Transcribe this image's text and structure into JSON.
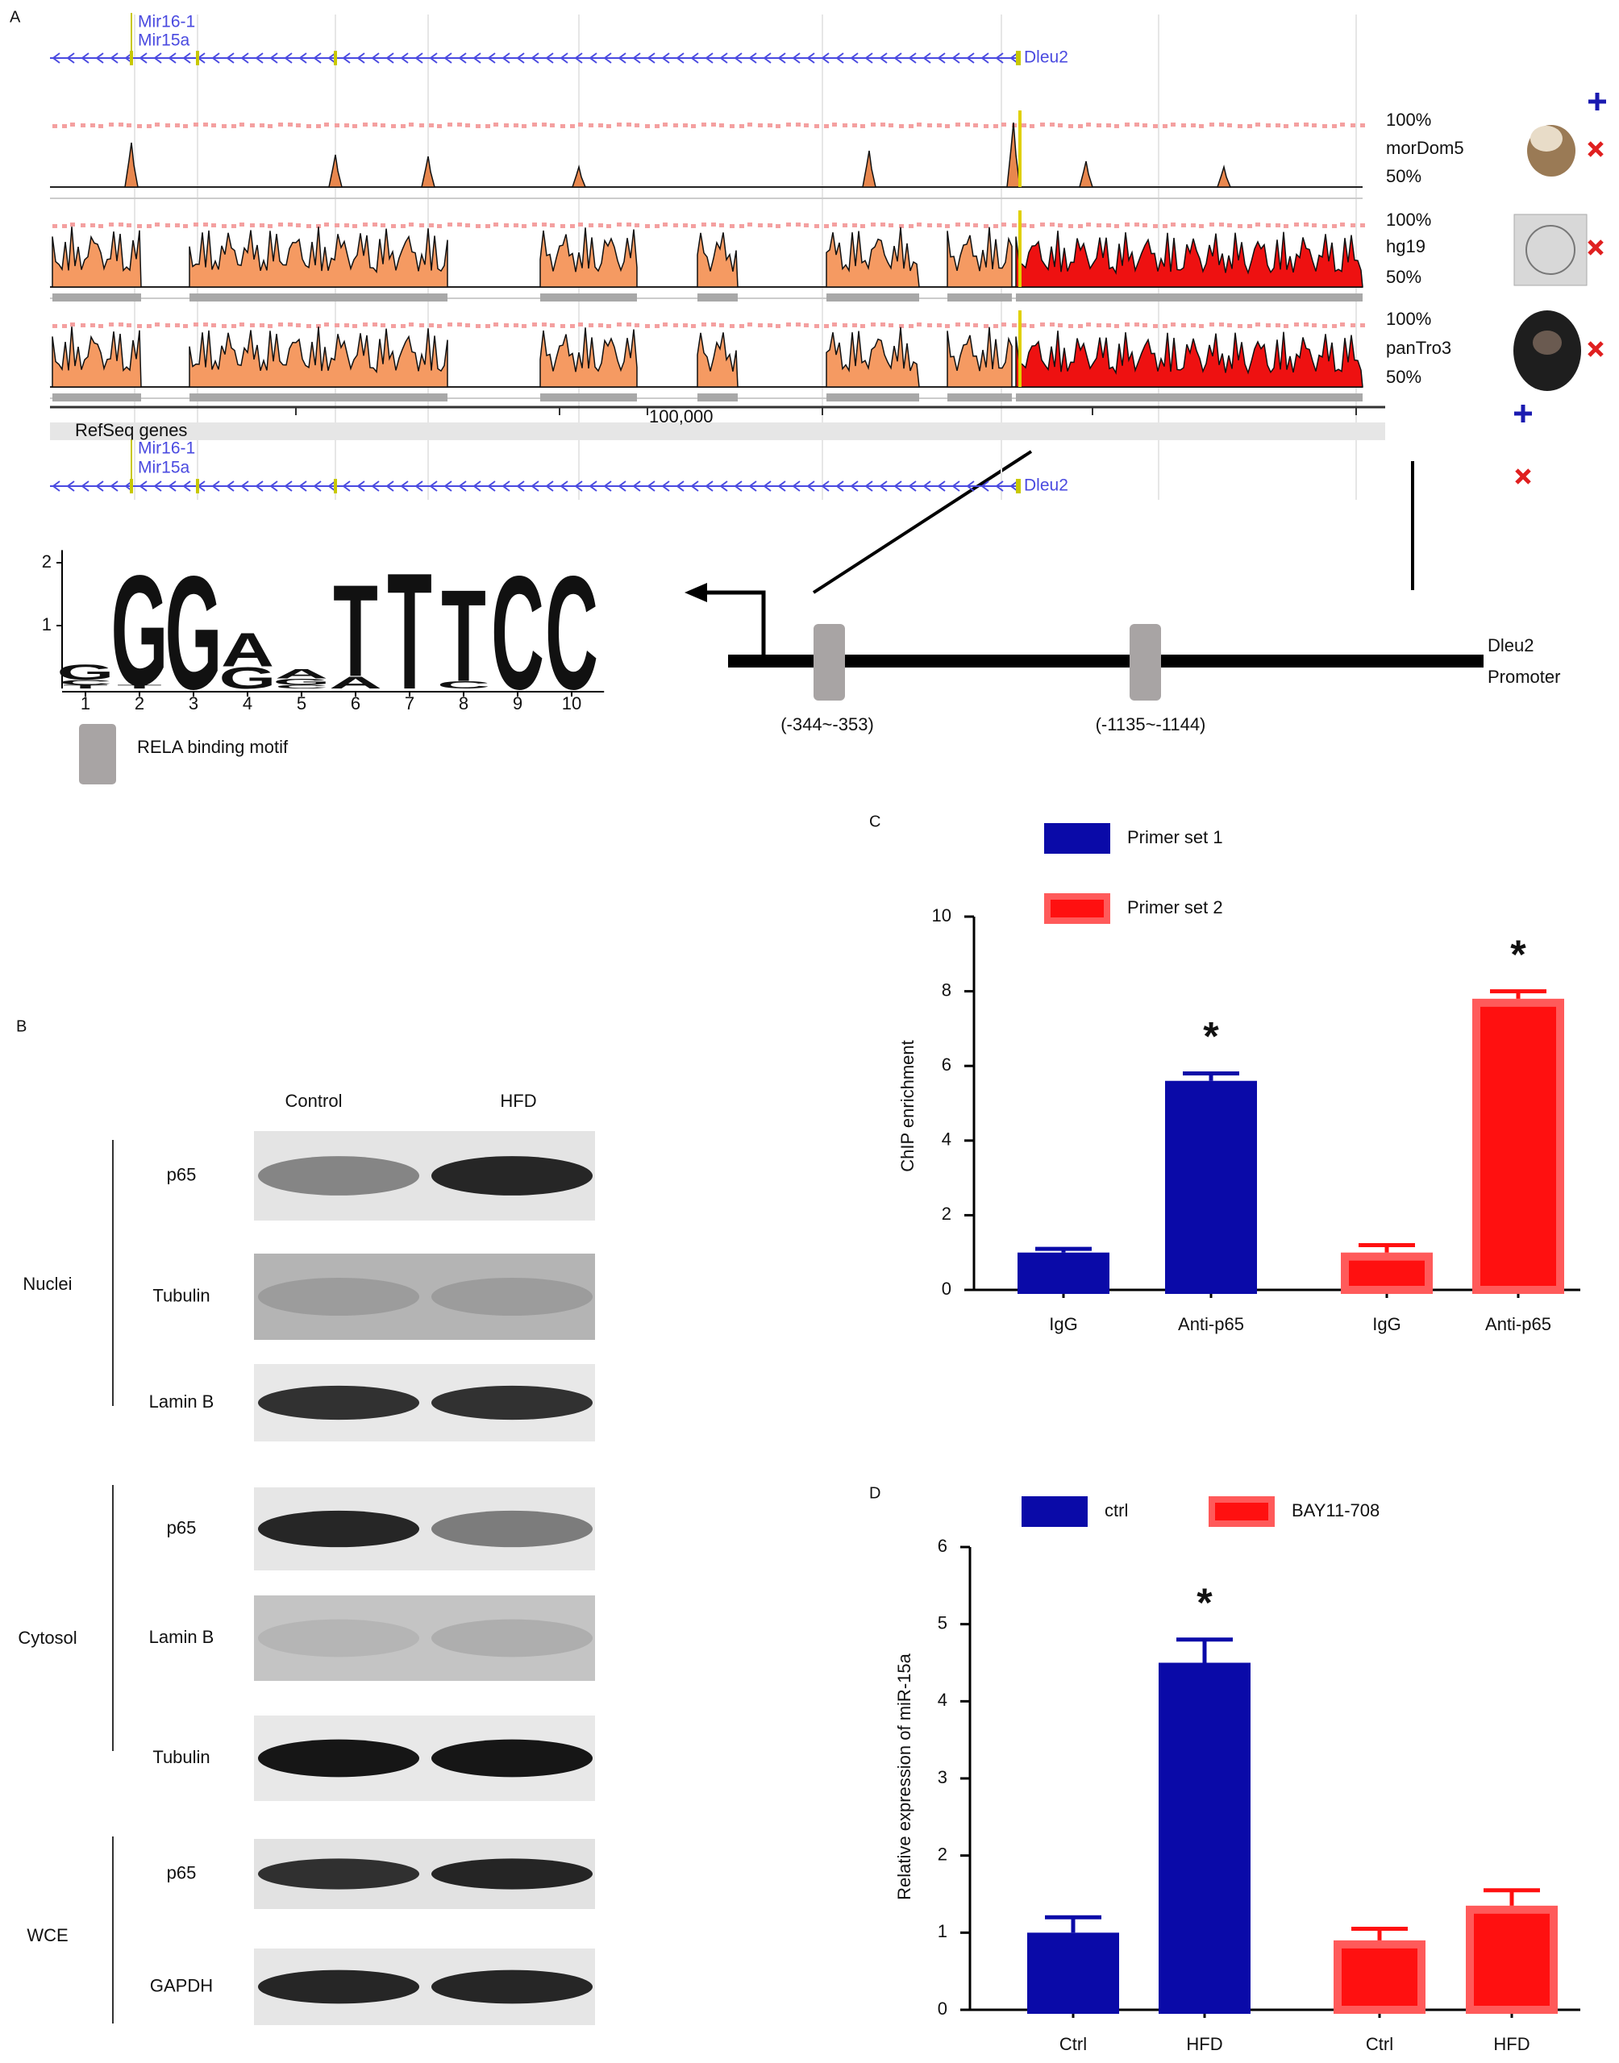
{
  "panel_labels": [
    "A",
    "B",
    "C",
    "D"
  ],
  "genome": {
    "genes_top": [
      "Mir16-1",
      "Mir15a",
      "Dleu2"
    ],
    "tracks": [
      {
        "name": "morDom5",
        "top": "100%",
        "bottom": "50%"
      },
      {
        "name": "hg19",
        "top": "100%",
        "bottom": "50%"
      },
      {
        "name": "panTro3",
        "top": "100%",
        "bottom": "50%"
      }
    ],
    "ruler": "100,000",
    "refseq": "RefSeq genes",
    "genes_bottom": [
      "Mir16-1",
      "Mir15a",
      "Dleu2"
    ]
  },
  "logo": {
    "yticks": [
      1,
      2
    ],
    "ylim": [
      0,
      2.2
    ],
    "positions": [
      1,
      2,
      3,
      4,
      5,
      6,
      7,
      8,
      9,
      10
    ],
    "colors": {
      "A": "#20b020",
      "C": "#0000d0",
      "G": "#c4c400",
      "T": "#ee0000"
    },
    "stacks": [
      [
        {
          "letter": "T",
          "height": 0.06
        },
        {
          "letter": "C",
          "height": 0.08
        },
        {
          "letter": "G",
          "height": 0.25
        }
      ],
      [
        {
          "letter": "T",
          "height": 0.06
        },
        {
          "letter": "G",
          "height": 1.8
        }
      ],
      [
        {
          "letter": "G",
          "height": 1.85
        }
      ],
      [
        {
          "letter": "G",
          "height": 0.35
        },
        {
          "letter": "A",
          "height": 0.55
        }
      ],
      [
        {
          "letter": "C",
          "height": 0.06
        },
        {
          "letter": "G",
          "height": 0.1
        },
        {
          "letter": "A",
          "height": 0.15
        }
      ],
      [
        {
          "letter": "A",
          "height": 0.2
        },
        {
          "letter": "T",
          "height": 1.5
        }
      ],
      [
        {
          "letter": "T",
          "height": 1.9
        }
      ],
      [
        {
          "letter": "C",
          "height": 0.12
        },
        {
          "letter": "T",
          "height": 1.5
        }
      ],
      [
        {
          "letter": "C",
          "height": 1.85
        }
      ],
      [
        {
          "letter": "C",
          "height": 1.85
        }
      ]
    ]
  },
  "promoter": {
    "gene": "Dleu2",
    "label": "Promoter",
    "sites": [
      "(-344~-353)",
      "(-1135~-1144)"
    ],
    "legend": "RELA binding motif"
  },
  "western": {
    "columns": [
      "Control",
      "HFD"
    ],
    "groups": [
      {
        "name": "Nuclei",
        "rows": [
          "p65",
          "Tubulin",
          "Lamin B"
        ]
      },
      {
        "name": "Cytosol",
        "rows": [
          "p65",
          "Lamin B",
          "Tubulin"
        ]
      },
      {
        "name": "WCE",
        "rows": [
          "p65",
          "GAPDH"
        ]
      }
    ]
  },
  "chart_data": [
    {
      "type": "bar",
      "ylabel": "ChIP enrichment",
      "categories": [
        "IgG",
        "Anti-p65",
        "IgG",
        "Anti-p65"
      ],
      "series": [
        {
          "name": "Primer set 1",
          "color": "#0a0aa8",
          "edge": "#0a0aa8",
          "values": [
            1.0,
            5.6,
            null,
            null
          ],
          "errors": [
            0.1,
            0.2,
            null,
            null
          ]
        },
        {
          "name": "Primer set 2",
          "color": "#ff1010",
          "edge": "#ff5a5a",
          "values": [
            null,
            null,
            1.0,
            7.8
          ],
          "errors": [
            null,
            null,
            0.2,
            0.2
          ]
        }
      ],
      "stars": [
        null,
        "*",
        null,
        "*"
      ],
      "ylim": [
        0,
        10
      ],
      "yticks": [
        0,
        2,
        4,
        6,
        8,
        10
      ]
    },
    {
      "type": "bar",
      "ylabel": "Relative expression of miR-15a",
      "categories": [
        "Ctrl",
        "HFD",
        "Ctrl",
        "HFD"
      ],
      "series": [
        {
          "name": "ctrl",
          "color": "#0a0aa8",
          "edge": "#0a0aa8",
          "values": [
            1.0,
            4.5,
            null,
            null
          ],
          "errors": [
            0.2,
            0.3,
            null,
            null
          ]
        },
        {
          "name": "BAY11-708",
          "color": "#ff1010",
          "edge": "#ff5a5a",
          "values": [
            null,
            null,
            0.9,
            1.35
          ],
          "errors": [
            null,
            null,
            0.15,
            0.2
          ]
        }
      ],
      "stars": [
        null,
        "*",
        null,
        null
      ],
      "ylim": [
        0,
        6
      ],
      "yticks": [
        0,
        1,
        2,
        3,
        4,
        5,
        6
      ]
    }
  ]
}
